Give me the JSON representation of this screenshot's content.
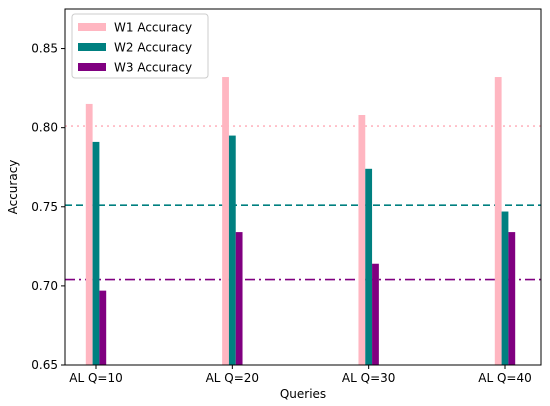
{
  "chart_data": {
    "type": "bar",
    "xlabel": "Queries",
    "ylabel": "Accuracy",
    "categories": [
      "AL Q=10",
      "AL Q=20",
      "AL Q=30",
      "AL Q=40"
    ],
    "ylim": [
      0.65,
      0.875
    ],
    "yticks": [
      "0.65",
      "0.70",
      "0.75",
      "0.80",
      "0.85"
    ],
    "grid": false,
    "legend_position": "top-left",
    "series": [
      {
        "name": "W1 Accuracy",
        "color": "#ffb6c1",
        "values": [
          0.815,
          0.832,
          0.808,
          0.832
        ]
      },
      {
        "name": "W2 Accuracy",
        "color": "#008080",
        "values": [
          0.791,
          0.795,
          0.774,
          0.747
        ]
      },
      {
        "name": "W3 Accuracy",
        "color": "#800080",
        "values": [
          0.697,
          0.734,
          0.714,
          0.734
        ]
      }
    ],
    "reference_lines": [
      {
        "value": 0.801,
        "color": "#ffb6c1",
        "style": "dotted"
      },
      {
        "value": 0.751,
        "color": "#008080",
        "style": "dashed"
      },
      {
        "value": 0.704,
        "color": "#800080",
        "style": "dashdot"
      }
    ]
  }
}
